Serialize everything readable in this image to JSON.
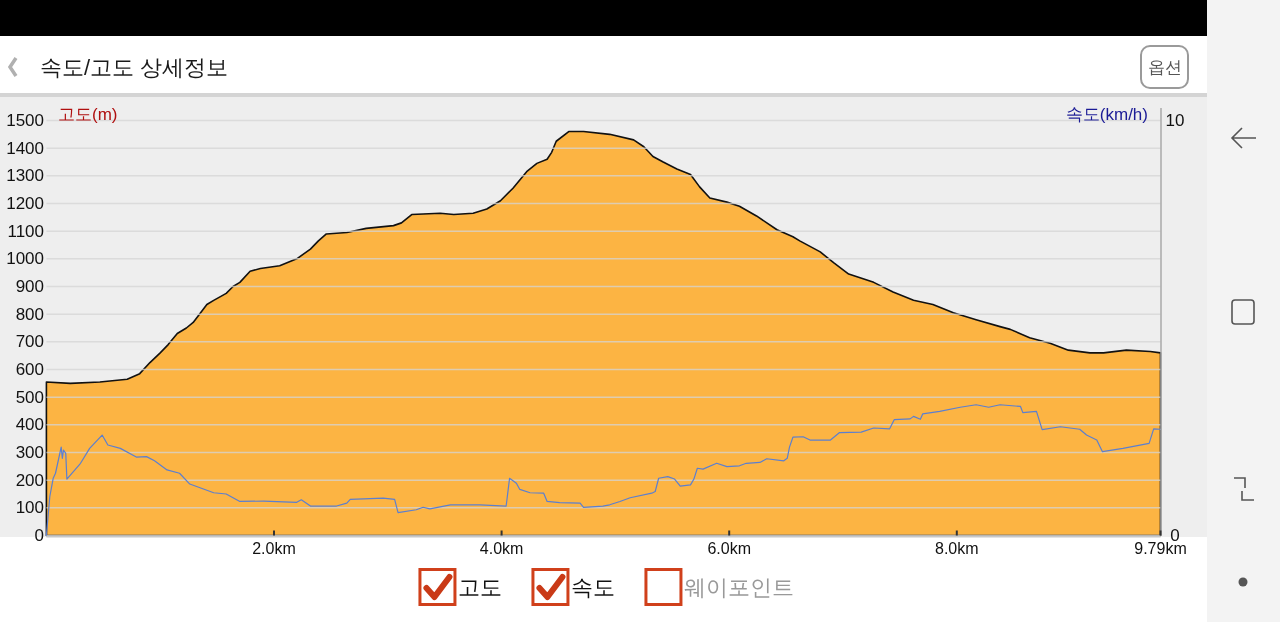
{
  "chart_data": {
    "type": "area",
    "title": "속도/고도 상세정보",
    "ylabel": "고도(m)",
    "y2label": "속도(km/h)",
    "xlim": [
      0,
      9.79
    ],
    "xticks": [
      {
        "value": 2,
        "label": "2.0km"
      },
      {
        "value": 4,
        "label": "4.0km"
      },
      {
        "value": 6,
        "label": "6.0km"
      },
      {
        "value": 8,
        "label": "8.0km"
      },
      {
        "value": 9.79,
        "label": "9.79km"
      }
    ],
    "ylim": [
      0,
      1500
    ],
    "yticks": [
      0,
      100,
      200,
      300,
      400,
      500,
      600,
      700,
      800,
      900,
      1000,
      1100,
      1200,
      1300,
      1400,
      1500
    ],
    "y2lim": [
      0,
      10
    ],
    "y2ticks": [
      0,
      10
    ],
    "grid": "y",
    "series": [
      {
        "color": "#fcb443",
        "x": [
          0,
          0.21,
          0.47,
          0.71,
          0.82,
          0.91,
          1.0,
          1.07,
          1.15,
          1.23,
          1.29,
          1.41,
          1.47,
          1.58,
          1.64,
          1.7,
          1.79,
          1.88,
          2.05,
          2.2,
          2.32,
          2.39,
          2.46,
          2.64,
          2.81,
          3.05,
          3.12,
          3.21,
          3.46,
          3.58,
          3.75,
          3.87,
          3.99,
          4.1,
          4.22,
          4.31,
          4.4,
          4.44,
          4.48,
          4.59,
          4.72,
          4.95,
          5.16,
          5.25,
          5.33,
          5.42,
          5.54,
          5.66,
          5.74,
          5.83,
          5.98,
          6.09,
          6.24,
          6.42,
          6.56,
          6.62,
          6.71,
          6.8,
          6.92,
          7.05,
          7.27,
          7.44,
          7.62,
          7.79,
          7.97,
          8.17,
          8.38,
          8.47,
          8.64,
          8.82,
          8.98,
          9.17,
          9.29,
          9.49,
          9.7,
          9.79
        ],
        "values": [
          555,
          550,
          555,
          565,
          585,
          625,
          660,
          690,
          730,
          750,
          770,
          835,
          850,
          875,
          900,
          915,
          955,
          965,
          975,
          1000,
          1035,
          1065,
          1090,
          1095,
          1110,
          1120,
          1130,
          1160,
          1165,
          1160,
          1165,
          1180,
          1210,
          1255,
          1315,
          1345,
          1360,
          1385,
          1425,
          1460,
          1460,
          1450,
          1430,
          1405,
          1370,
          1350,
          1325,
          1305,
          1260,
          1220,
          1205,
          1190,
          1155,
          1105,
          1080,
          1065,
          1045,
          1025,
          985,
          945,
          915,
          880,
          850,
          835,
          805,
          780,
          755,
          745,
          715,
          695,
          670,
          660,
          660,
          670,
          665,
          660
        ]
      },
      {
        "type": "line",
        "axis": "y2",
        "color": "#5b7fd0",
        "x": [
          0,
          0.03,
          0.06,
          0.08,
          0.13,
          0.14,
          0.15,
          0.17,
          0.18,
          0.3,
          0.38,
          0.49,
          0.54,
          0.65,
          0.79,
          0.88,
          0.95,
          1.06,
          1.17,
          1.26,
          1.47,
          1.58,
          1.7,
          1.91,
          2.2,
          2.24,
          2.32,
          2.55,
          2.64,
          2.67,
          2.96,
          3.06,
          3.09,
          3.25,
          3.31,
          3.37,
          3.55,
          3.81,
          4.04,
          4.07,
          4.13,
          4.16,
          4.25,
          4.37,
          4.4,
          4.51,
          4.69,
          4.72,
          4.89,
          4.95,
          5.04,
          5.13,
          5.32,
          5.35,
          5.38,
          5.46,
          5.52,
          5.57,
          5.66,
          5.69,
          5.72,
          5.77,
          5.89,
          5.98,
          6.09,
          6.15,
          6.27,
          6.33,
          6.48,
          6.51,
          6.53,
          6.56,
          6.65,
          6.71,
          6.89,
          6.97,
          7.16,
          7.27,
          7.41,
          7.45,
          7.59,
          7.62,
          7.68,
          7.7,
          7.85,
          8.03,
          8.17,
          8.28,
          8.38,
          8.56,
          8.58,
          8.7,
          8.75,
          8.91,
          9.08,
          9.14,
          9.23,
          9.28,
          9.46,
          9.69,
          9.73,
          9.79
        ],
        "values": [
          0,
          0.94,
          1.38,
          1.5,
          2.13,
          1.86,
          2.06,
          1.98,
          1.36,
          1.74,
          2.1,
          2.42,
          2.18,
          2.1,
          1.89,
          1.9,
          1.8,
          1.58,
          1.5,
          1.24,
          1.03,
          1.0,
          0.82,
          0.83,
          0.8,
          0.86,
          0.71,
          0.71,
          0.78,
          0.87,
          0.9,
          0.87,
          0.55,
          0.62,
          0.68,
          0.64,
          0.74,
          0.74,
          0.71,
          1.38,
          1.26,
          1.11,
          1.03,
          1.02,
          0.82,
          0.79,
          0.78,
          0.68,
          0.71,
          0.74,
          0.82,
          0.91,
          1.02,
          1.06,
          1.38,
          1.42,
          1.36,
          1.19,
          1.22,
          1.36,
          1.62,
          1.6,
          1.74,
          1.66,
          1.68,
          1.74,
          1.76,
          1.85,
          1.8,
          1.86,
          2.13,
          2.37,
          2.38,
          2.3,
          2.3,
          2.48,
          2.49,
          2.59,
          2.57,
          2.79,
          2.81,
          2.87,
          2.8,
          2.93,
          2.99,
          3.09,
          3.15,
          3.09,
          3.15,
          3.11,
          2.96,
          2.99,
          2.55,
          2.62,
          2.56,
          2.42,
          2.3,
          2.02,
          2.1,
          2.22,
          2.57,
          2.56
        ]
      }
    ],
    "annotations": [
      "옵션",
      "고도",
      "속도",
      "웨이포인트"
    ]
  }
}
